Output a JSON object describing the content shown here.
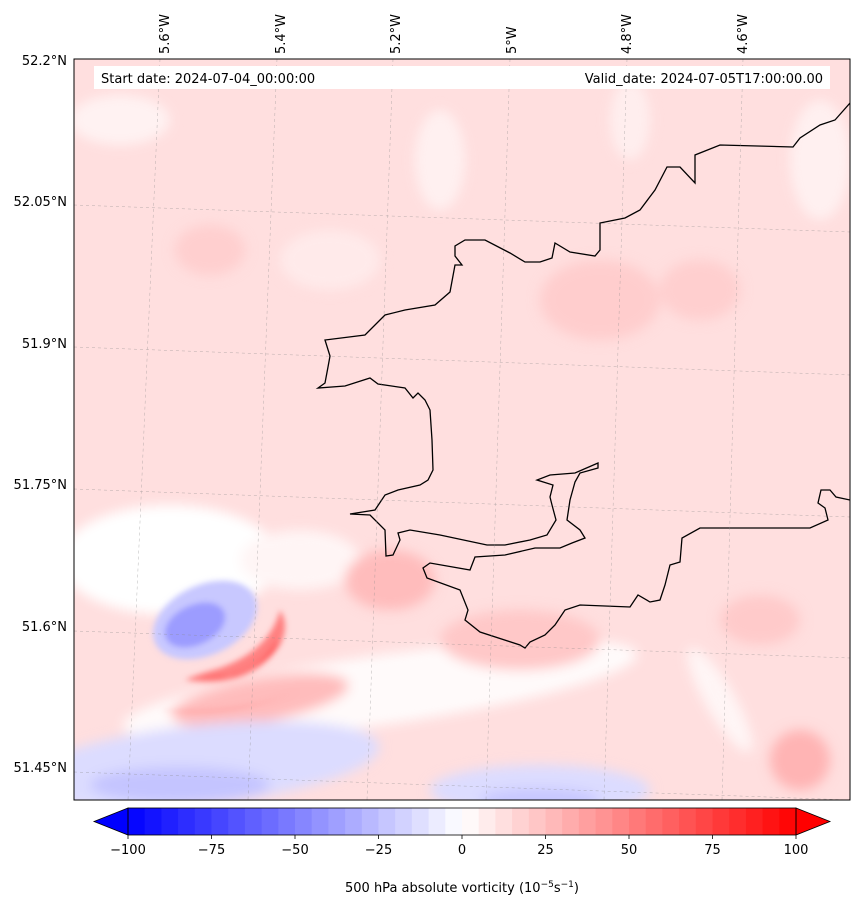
{
  "header": {
    "start_date": "Start date: 2024-07-04_00:00:00",
    "valid_date": "Valid_date: 2024-07-05T17:00:00.00"
  },
  "axes": {
    "longitude_labels": [
      "5.6°W",
      "5.4°W",
      "5.2°W",
      "5°W",
      "4.8°W",
      "4.6°W"
    ],
    "latitude_labels": [
      "52.2°N",
      "52.05°N",
      "51.9°N",
      "51.75°N",
      "51.6°N",
      "51.45°N"
    ]
  },
  "colorbar": {
    "ticks": [
      -100,
      -75,
      -50,
      -25,
      0,
      25,
      50,
      75,
      100
    ],
    "tick_labels": [
      "−100",
      "−75",
      "−50",
      "−25",
      "0",
      "25",
      "50",
      "75",
      "100"
    ],
    "label_main": "500 hPa absolute vorticity (10",
    "label_sup1": "−5",
    "label_mid": "s",
    "label_sup2": "−1",
    "label_end": ")",
    "range": [
      -100,
      100
    ],
    "levels": 40,
    "extend": "both"
  },
  "colors": {
    "background_field": "#ffdfdf",
    "coastline": "#000000",
    "negative": "#0000ff",
    "positive": "#ff0000"
  }
}
